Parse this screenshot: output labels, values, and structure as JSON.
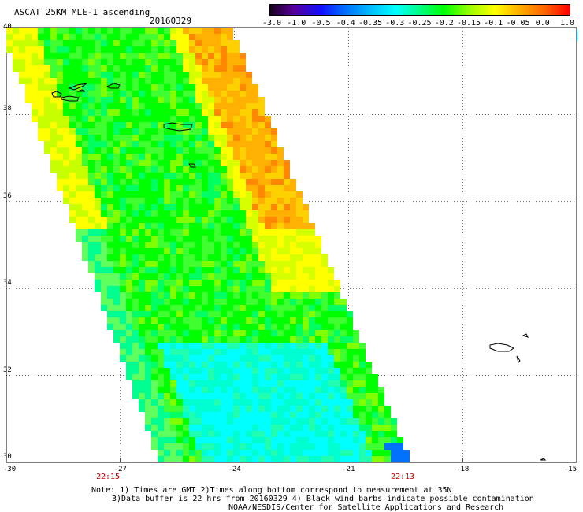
{
  "title": "ASCAT 25KM MLE-1 ascending",
  "date": "20160329",
  "colorbar": {
    "labels": [
      "-3.0",
      "-1.0",
      "-0.5",
      "-0.4",
      "-0.35",
      "-0.3",
      "-0.25",
      "-0.2",
      "-0.15",
      "-0.1",
      "-0.05",
      "0.0",
      "1.0"
    ],
    "colors": [
      "#1a0020",
      "#5a00a0",
      "#1010ff",
      "#0070ff",
      "#00b8ff",
      "#00ffff",
      "#00ff80",
      "#00ff00",
      "#a0ff00",
      "#ffff00",
      "#ffb000",
      "#ff6000",
      "#ff0000"
    ]
  },
  "axes": {
    "lat_labels": [
      "40",
      "38",
      "36",
      "34",
      "32",
      "30"
    ],
    "lon_labels": [
      "-30",
      "-27",
      "-24",
      "-21",
      "-18",
      "-15"
    ]
  },
  "times": {
    "left": "22:15",
    "right": "22:13"
  },
  "notes": {
    "line1": "Note: 1) Times are GMT 2)Times along bottom correspond to measurement at 35N",
    "line2": "3)Data buffer is 22 hrs from 20160329 4) Black wind barbs indicate possible contamination",
    "credit": "NOAA/NESDIS/Center for Satellite Applications and Research"
  }
}
